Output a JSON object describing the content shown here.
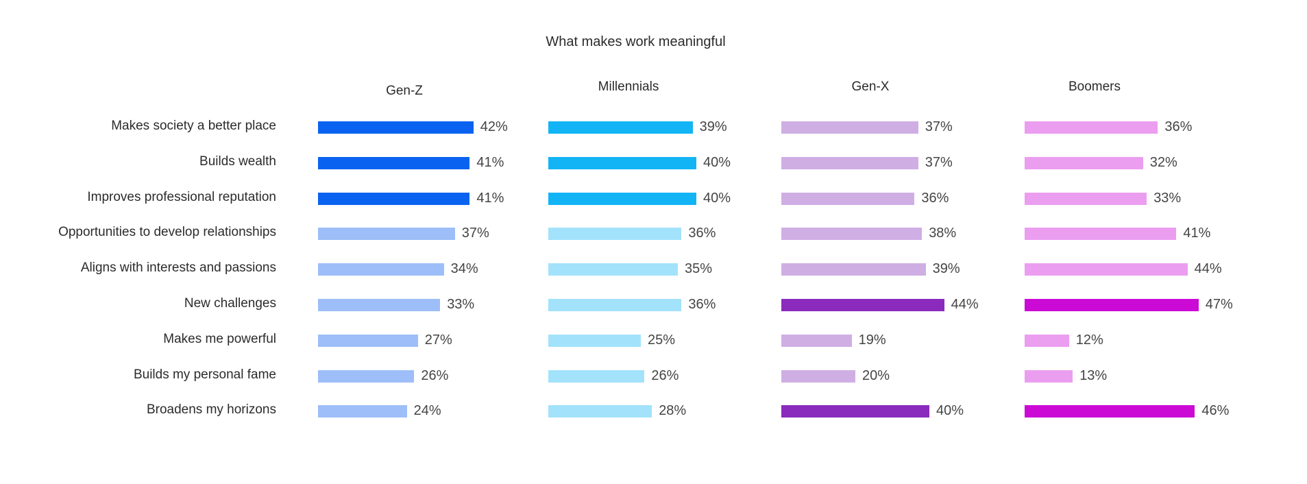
{
  "chart_data": {
    "type": "bar",
    "orientation": "horizontal",
    "title": "What makes work meaningful",
    "categories": [
      "Makes society a better place",
      "Builds wealth",
      "Improves professional reputation",
      "Opportunities to develop relationships",
      "Aligns with interests and passions",
      "New challenges",
      "Makes me powerful",
      "Builds my personal fame",
      "Broadens my horizons"
    ],
    "value_suffix": "%",
    "series": [
      {
        "name": "Gen-Z",
        "values": [
          42,
          41,
          41,
          37,
          34,
          33,
          27,
          26,
          24
        ],
        "highlight": [
          true,
          true,
          true,
          false,
          false,
          false,
          false,
          false,
          false
        ],
        "color_strong": "#0a63f0",
        "color_light": "#9dbef8"
      },
      {
        "name": "Millennials",
        "values": [
          39,
          40,
          40,
          36,
          35,
          36,
          25,
          26,
          28
        ],
        "highlight": [
          true,
          true,
          true,
          false,
          false,
          false,
          false,
          false,
          false
        ],
        "color_strong": "#13b4f5",
        "color_light": "#a2e2fb"
      },
      {
        "name": "Gen-X",
        "values": [
          37,
          37,
          36,
          38,
          39,
          44,
          19,
          20,
          40
        ],
        "highlight": [
          false,
          false,
          false,
          false,
          false,
          true,
          false,
          false,
          true
        ],
        "color_strong": "#8a2bbd",
        "color_light": "#cfaee4"
      },
      {
        "name": "Boomers",
        "values": [
          36,
          32,
          33,
          41,
          44,
          47,
          12,
          13,
          46
        ],
        "highlight": [
          false,
          false,
          false,
          false,
          false,
          true,
          false,
          false,
          true
        ],
        "color_strong": "#cc0ad6",
        "color_light": "#eb9ef0"
      }
    ],
    "grid": false,
    "legend": "none"
  }
}
